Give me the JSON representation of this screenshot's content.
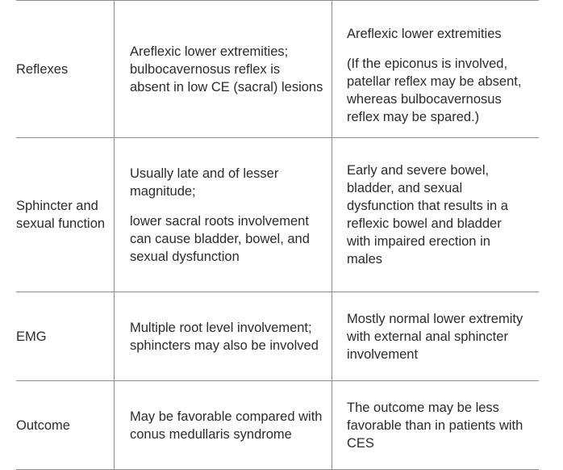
{
  "rows": [
    {
      "label": "Reflexes",
      "conus": [
        "Areflexic lower extremities; bulbocavernosus reflex is absent in low CE (sacral) lesions"
      ],
      "ces": [
        "Areflexic lower extremities",
        "(If the epiconus is involved, patellar reflex may be absent, whereas bulbocavernosus reflex may be spared.)"
      ]
    },
    {
      "label": "Sphincter and sexual function",
      "conus": [
        "Usually late and of lesser magnitude;",
        "lower sacral roots involvement can cause bladder, bowel, and sexual dysfunction"
      ],
      "ces": [
        "Early and severe bowel, bladder, and sexual dysfunction that results in a reflexic bowel and bladder with impaired erection in males"
      ]
    },
    {
      "label": "EMG",
      "conus": [
        "Multiple root level involvement; sphincters may also be involved"
      ],
      "ces": [
        "Mostly normal lower extremity with external anal sphincter involvement"
      ]
    },
    {
      "label": "Outcome",
      "conus": [
        "May be favorable compared with conus medullaris syndrome"
      ],
      "ces": [
        "The outcome may be less favorable than in patients with CES"
      ]
    }
  ]
}
